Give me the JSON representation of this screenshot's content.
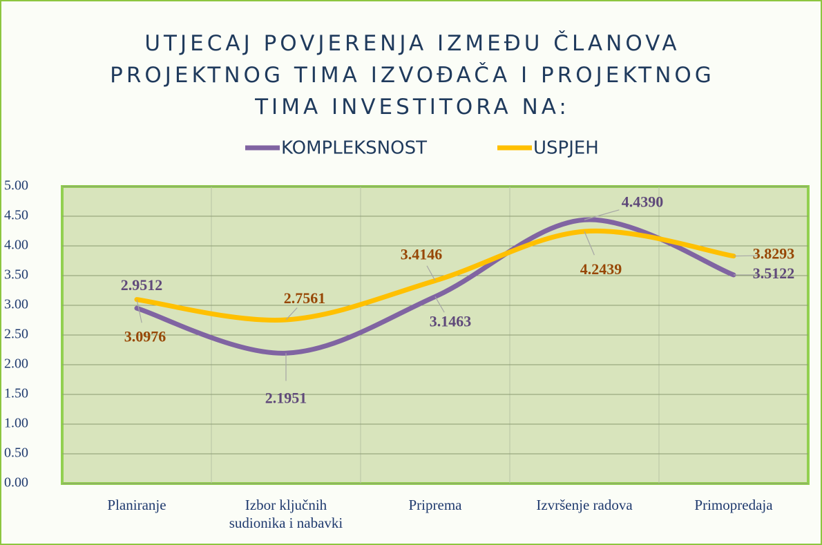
{
  "chart_data": {
    "type": "line",
    "title": "UTJECAJ POVJERENJA IZMEĐU ČLANOVA PROJEKTNOG TIMA IZVOĐAČA I PROJEKTNOG TIMA INVESTITORA NA:",
    "categories": [
      "Planiranje",
      "Izbor ključnih sudionika i nabavki",
      "Priprema",
      "Izvršenje radova",
      "Primopredaja"
    ],
    "series": [
      {
        "name": "KOMPLEKSNOST",
        "color": "#8064a2",
        "label_color": "#5f497a",
        "values": [
          2.9512,
          2.1951,
          3.1463,
          4.439,
          3.5122
        ],
        "value_labels": [
          "2.9512",
          "2.1951",
          "3.1463",
          "4.4390",
          "3.5122"
        ]
      },
      {
        "name": "USPJEH",
        "color": "#ffc000",
        "label_color": "#974706",
        "values": [
          3.0976,
          2.7561,
          3.4146,
          4.2439,
          3.8293
        ],
        "value_labels": [
          "3.0976",
          "2.7561",
          "3.4146",
          "4.2439",
          "3.8293"
        ]
      }
    ],
    "ylim": [
      0,
      5
    ],
    "yticks": [
      {
        "value": 0,
        "label": "0.00"
      },
      {
        "value": 0.5,
        "label": "0.50"
      },
      {
        "value": 1,
        "label": "1.00"
      },
      {
        "value": 1.5,
        "label": "1.50"
      },
      {
        "value": 2,
        "label": "2.00"
      },
      {
        "value": 2.5,
        "label": "2.50"
      },
      {
        "value": 3,
        "label": "3.00"
      },
      {
        "value": 3.5,
        "label": "3.50"
      },
      {
        "value": 4,
        "label": "4.00"
      },
      {
        "value": 4.5,
        "label": "4.50"
      },
      {
        "value": 5,
        "label": "5.00"
      }
    ],
    "grid": true,
    "smooth": true,
    "legend": "top"
  }
}
